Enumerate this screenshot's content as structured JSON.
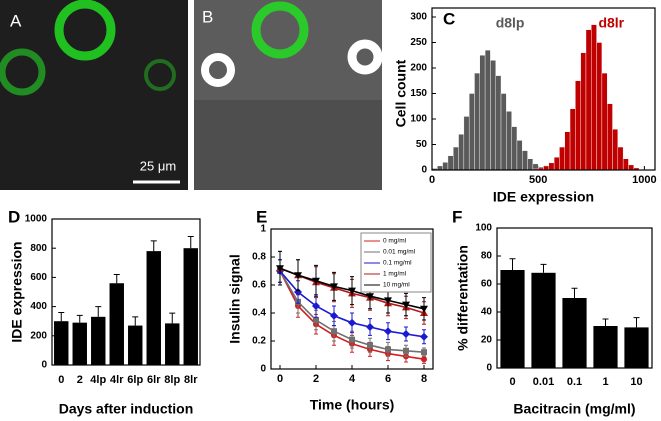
{
  "image_panels": [
    {
      "label": "A",
      "scale_bar": "25 μm"
    },
    {
      "label": "B"
    }
  ],
  "chart_data": [
    {
      "type": "histogram",
      "panel": "C",
      "xlabel": "IDE expression",
      "ylabel": "Cell count",
      "bins": [
        0,
        25,
        50,
        75,
        100,
        125,
        150,
        175,
        200,
        225,
        250,
        275,
        300,
        325,
        350,
        375,
        400,
        425,
        450,
        475,
        500,
        525,
        550,
        575,
        600,
        625,
        650,
        675,
        700,
        725,
        750,
        775,
        800,
        825,
        850,
        875,
        900,
        925,
        950,
        975,
        1000
      ],
      "series": [
        {
          "name": "d8lp",
          "color": "#5a5a5a",
          "values": [
            3,
            8,
            15,
            28,
            45,
            70,
            105,
            150,
            190,
            225,
            235,
            215,
            185,
            150,
            115,
            85,
            58,
            38,
            22,
            12,
            6,
            3,
            1,
            0,
            0,
            0,
            0,
            0,
            0,
            0,
            0,
            0,
            0,
            0,
            0,
            0,
            0,
            0,
            0,
            0
          ]
        },
        {
          "name": "d8lr",
          "color": "#c00000",
          "values": [
            0,
            0,
            0,
            0,
            0,
            0,
            0,
            0,
            0,
            0,
            0,
            0,
            0,
            0,
            0,
            0,
            0,
            0,
            0,
            2,
            4,
            8,
            14,
            25,
            45,
            75,
            120,
            175,
            230,
            275,
            285,
            250,
            190,
            130,
            80,
            45,
            22,
            10,
            4,
            1
          ]
        }
      ],
      "xlim": [
        0,
        1050
      ],
      "xticks": [
        0,
        500,
        1000
      ],
      "ylim": [
        0,
        300
      ],
      "yticks": [
        0,
        50,
        100,
        150,
        200,
        250,
        300
      ]
    },
    {
      "type": "bar",
      "panel": "D",
      "xlabel": "Days after induction",
      "ylabel": "IDE expression",
      "color": "#000000",
      "categories": [
        "0",
        "2",
        "4lp",
        "4lr",
        "6lp",
        "6lr",
        "8lp",
        "8lr"
      ],
      "values": [
        300,
        290,
        330,
        560,
        270,
        780,
        285,
        800
      ],
      "errors": [
        60,
        50,
        70,
        60,
        60,
        70,
        70,
        80
      ],
      "ylim": [
        0,
        1000
      ],
      "yticks": [
        0,
        200,
        400,
        600,
        800,
        1000
      ]
    },
    {
      "type": "line",
      "panel": "E",
      "xlabel": "Time (hours)",
      "ylabel": "Insulin signal",
      "x": [
        0,
        1,
        2,
        3,
        4,
        5,
        6,
        7,
        8
      ],
      "series": [
        {
          "name": "0 mg/ml",
          "color": "#d02020",
          "marker": "circle",
          "values": [
            0.7,
            0.45,
            0.32,
            0.24,
            0.18,
            0.14,
            0.11,
            0.09,
            0.07
          ],
          "errors": [
            0.08,
            0.08,
            0.07,
            0.07,
            0.06,
            0.05,
            0.05,
            0.04,
            0.03
          ]
        },
        {
          "name": "0.01 mg/ml",
          "color": "#707070",
          "marker": "square",
          "values": [
            0.7,
            0.48,
            0.35,
            0.27,
            0.21,
            0.17,
            0.14,
            0.13,
            0.12
          ],
          "errors": [
            0.08,
            0.08,
            0.07,
            0.07,
            0.06,
            0.05,
            0.05,
            0.04,
            0.03
          ]
        },
        {
          "name": "0.1 mg/ml",
          "color": "#1a1ad0",
          "marker": "diamond",
          "values": [
            0.7,
            0.55,
            0.45,
            0.38,
            0.33,
            0.3,
            0.27,
            0.25,
            0.23
          ],
          "errors": [
            0.08,
            0.08,
            0.08,
            0.07,
            0.07,
            0.06,
            0.06,
            0.05,
            0.05
          ]
        },
        {
          "name": "1 mg/ml",
          "color": "#b01818",
          "marker": "triangle",
          "values": [
            0.72,
            0.67,
            0.62,
            0.58,
            0.54,
            0.51,
            0.47,
            0.44,
            0.4
          ],
          "errors": [
            0.12,
            0.11,
            0.11,
            0.1,
            0.1,
            0.09,
            0.09,
            0.08,
            0.08
          ]
        },
        {
          "name": "10 mg/ml",
          "color": "#000000",
          "marker": "triangle-down",
          "values": [
            0.72,
            0.67,
            0.63,
            0.59,
            0.56,
            0.52,
            0.49,
            0.46,
            0.43
          ],
          "errors": [
            0.12,
            0.11,
            0.11,
            0.1,
            0.1,
            0.09,
            0.09,
            0.08,
            0.08
          ]
        }
      ],
      "xlim": [
        -0.5,
        8.5
      ],
      "xticks": [
        0,
        2,
        4,
        6,
        8
      ],
      "ylim": [
        0,
        1
      ],
      "yticks": [
        0,
        0.2,
        0.4,
        0.6,
        0.8,
        1
      ]
    },
    {
      "type": "bar",
      "panel": "F",
      "xlabel": "Bacitracin (mg/ml)",
      "ylabel": "% differentation",
      "color": "#000000",
      "categories": [
        "0",
        "0.01",
        "0.1",
        "1",
        "10"
      ],
      "values": [
        70,
        68,
        50,
        30,
        29
      ],
      "errors": [
        8,
        6,
        7,
        5,
        7
      ],
      "ylim": [
        0,
        100
      ],
      "yticks": [
        0,
        20,
        40,
        60,
        80,
        100
      ]
    }
  ]
}
